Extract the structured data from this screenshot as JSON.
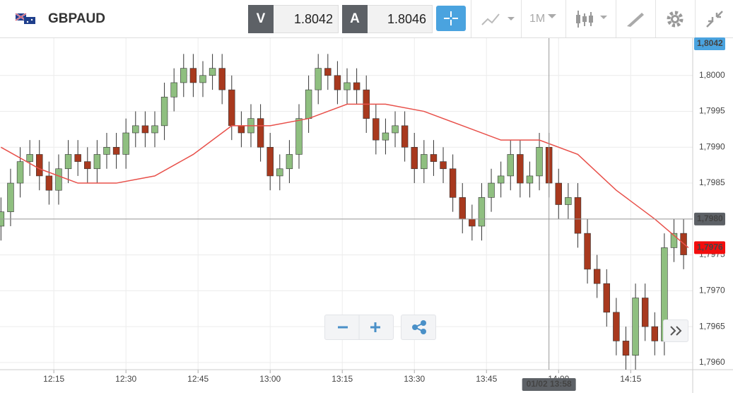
{
  "header": {
    "symbol": "GBPAUD",
    "bid_label": "V",
    "bid": "1.8042",
    "ask_label": "A",
    "ask": "1.8046",
    "timeframe": "1M"
  },
  "chart_data": {
    "type": "candlestick",
    "x": [
      724,
      726,
      728,
      730,
      732,
      734,
      736,
      738,
      740,
      742,
      744,
      746,
      748,
      750,
      752,
      754,
      756,
      758,
      760,
      762,
      764,
      766,
      768,
      770,
      772,
      774,
      776,
      778,
      780,
      782,
      784,
      786,
      788,
      790,
      792,
      794,
      796,
      798,
      800,
      802,
      804,
      806,
      808,
      810,
      812,
      814,
      816,
      818,
      820,
      822,
      824,
      826,
      828,
      830,
      832,
      834,
      836,
      838,
      840,
      842,
      844,
      846,
      848,
      850,
      852,
      854,
      856,
      858,
      860,
      862,
      864,
      866
    ],
    "open": [
      1.7979,
      1.7981,
      1.7985,
      1.7988,
      1.7989,
      1.7986,
      1.7984,
      1.7987,
      1.7989,
      1.7988,
      1.7987,
      1.7989,
      1.799,
      1.7989,
      1.7992,
      1.7993,
      1.7992,
      1.7993,
      1.7997,
      1.7999,
      1.8001,
      1.7999,
      1.8,
      1.8001,
      1.7998,
      1.7993,
      1.7992,
      1.7994,
      1.799,
      1.7986,
      1.7987,
      1.7989,
      1.7994,
      1.7998,
      1.8001,
      1.8,
      1.7998,
      1.7999,
      1.7998,
      1.7994,
      1.7991,
      1.7992,
      1.7993,
      1.799,
      1.7987,
      1.7989,
      1.7988,
      1.7987,
      1.7983,
      1.798,
      1.7979,
      1.7983,
      1.7985,
      1.7986,
      1.7989,
      1.7985,
      1.7986,
      1.799,
      1.7985,
      1.7982,
      1.7983,
      1.7978,
      1.7973,
      1.7971,
      1.7967,
      1.7963,
      1.7961,
      1.7969,
      1.7965,
      1.7963,
      1.7976,
      1.7978
    ],
    "high": [
      1.7983,
      1.7987,
      1.799,
      1.7991,
      1.7991,
      1.7988,
      1.7989,
      1.7991,
      1.7991,
      1.799,
      1.7991,
      1.7992,
      1.7992,
      1.7994,
      1.7995,
      1.7995,
      1.7995,
      1.7999,
      1.8001,
      1.8003,
      1.8003,
      1.8002,
      1.8003,
      1.8003,
      1.8,
      1.7995,
      1.7996,
      1.7996,
      1.7992,
      1.7989,
      1.7991,
      1.7996,
      1.8,
      1.8003,
      1.8003,
      1.8002,
      1.8001,
      1.8001,
      1.8,
      1.7996,
      1.7994,
      1.7995,
      1.7995,
      1.7992,
      1.7991,
      1.7991,
      1.799,
      1.7989,
      1.7985,
      1.7982,
      1.7985,
      1.7987,
      1.7988,
      1.7991,
      1.7991,
      1.7988,
      1.7992,
      1.7992,
      1.7987,
      1.7985,
      1.7985,
      1.798,
      1.7975,
      1.7973,
      1.7969,
      1.7965,
      1.7971,
      1.7971,
      1.7967,
      1.7978,
      1.798,
      1.798
    ],
    "low": [
      1.7977,
      1.7979,
      1.7983,
      1.7986,
      1.7984,
      1.7982,
      1.7982,
      1.7985,
      1.7986,
      1.7985,
      1.7985,
      1.7987,
      1.7987,
      1.7987,
      1.799,
      1.799,
      1.799,
      1.7991,
      1.7995,
      1.7997,
      1.7997,
      1.7997,
      1.7998,
      1.7996,
      1.7991,
      1.799,
      1.799,
      1.7988,
      1.7984,
      1.7984,
      1.7985,
      1.7987,
      1.7992,
      1.7996,
      1.7998,
      1.7996,
      1.7996,
      1.7996,
      1.7992,
      1.7989,
      1.7989,
      1.799,
      1.7988,
      1.7985,
      1.7985,
      1.7986,
      1.7985,
      1.7981,
      1.7978,
      1.7977,
      1.7977,
      1.7981,
      1.7983,
      1.7984,
      1.7983,
      1.7983,
      1.7984,
      1.7983,
      1.798,
      1.798,
      1.7976,
      1.7971,
      1.7969,
      1.7965,
      1.7961,
      1.7959,
      1.7959,
      1.7963,
      1.7961,
      1.7961,
      1.7974,
      1.7973
    ],
    "close": [
      1.7981,
      1.7985,
      1.7988,
      1.7989,
      1.7986,
      1.7984,
      1.7987,
      1.7989,
      1.7988,
      1.7987,
      1.7989,
      1.799,
      1.7989,
      1.7992,
      1.7993,
      1.7992,
      1.7993,
      1.7997,
      1.7999,
      1.8001,
      1.7999,
      1.8,
      1.8001,
      1.7998,
      1.7993,
      1.7992,
      1.7994,
      1.799,
      1.7986,
      1.7987,
      1.7989,
      1.7994,
      1.7998,
      1.8001,
      1.8,
      1.7998,
      1.7999,
      1.7998,
      1.7994,
      1.7991,
      1.7992,
      1.7993,
      1.799,
      1.7987,
      1.7989,
      1.7988,
      1.7987,
      1.7983,
      1.798,
      1.7979,
      1.7983,
      1.7985,
      1.7986,
      1.7989,
      1.7985,
      1.7986,
      1.799,
      1.7985,
      1.7982,
      1.7983,
      1.7978,
      1.7973,
      1.7971,
      1.7967,
      1.7963,
      1.7961,
      1.7969,
      1.7965,
      1.7963,
      1.7976,
      1.7978,
      1.7975
    ],
    "up_color": "#8fbf80",
    "down_color": "#a8391e",
    "moving_average": {
      "color": "#e8504a",
      "x": [
        724,
        732,
        740,
        748,
        756,
        764,
        772,
        780,
        788,
        796,
        804,
        812,
        820,
        828,
        836,
        844,
        852,
        860,
        867
      ],
      "values": [
        1.799,
        1.7987,
        1.7985,
        1.7985,
        1.7986,
        1.7989,
        1.7993,
        1.7993,
        1.7994,
        1.7996,
        1.7996,
        1.7995,
        1.7993,
        1.7991,
        1.7991,
        1.7989,
        1.7984,
        1.798,
        1.7976
      ]
    },
    "xlim": [
      723.8,
      867.9
    ],
    "xticks": [
      {
        "value": 735,
        "label": "12:15"
      },
      {
        "value": 750,
        "label": "12:30"
      },
      {
        "value": 765,
        "label": "12:45"
      },
      {
        "value": 780,
        "label": "13:00"
      },
      {
        "value": 795,
        "label": "13:15"
      },
      {
        "value": 810,
        "label": "13:30"
      },
      {
        "value": 825,
        "label": "13:45"
      },
      {
        "value": 840,
        "label": "14:00"
      },
      {
        "value": 855,
        "label": "14:15"
      }
    ],
    "ylim": [
      1.7959,
      1.80052
    ],
    "yticks": [
      {
        "value": 1.796,
        "label": "1,7960"
      },
      {
        "value": 1.7965,
        "label": "1,7965"
      },
      {
        "value": 1.797,
        "label": "1,7970"
      },
      {
        "value": 1.7975,
        "label": "1,7975"
      },
      {
        "value": 1.798,
        "label": "1,7980"
      },
      {
        "value": 1.7985,
        "label": "1,7985"
      },
      {
        "value": 1.799,
        "label": "1,7990"
      },
      {
        "value": 1.7995,
        "label": "1,7995"
      },
      {
        "value": 1.8,
        "label": "1,8000"
      }
    ],
    "grid": true,
    "top_tag": "1,8042",
    "crosshair_y": {
      "value": 1.798,
      "label": "1,7980"
    },
    "crosshair_x": {
      "value": 838,
      "label": "01/02 13:58"
    },
    "last_price": {
      "value": 1.7976,
      "label": "1,7976"
    }
  }
}
